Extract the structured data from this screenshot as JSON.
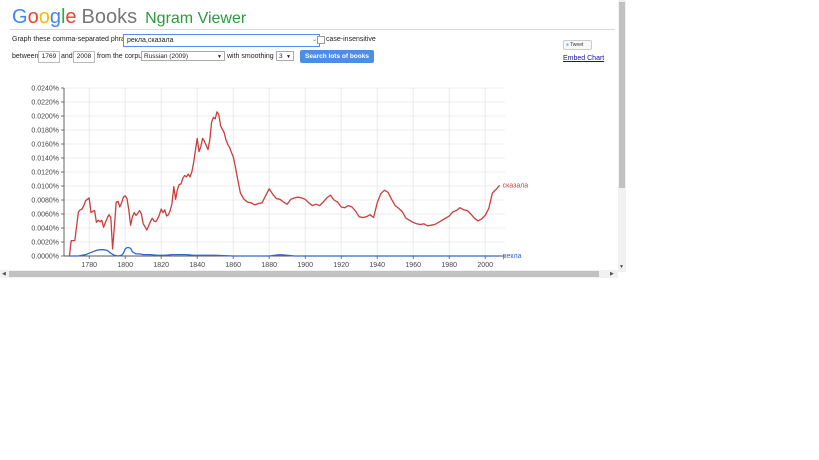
{
  "header": {
    "logo_letters": [
      "G",
      "o",
      "o",
      "g",
      "l",
      "e"
    ],
    "books": "Books",
    "title": "Ngram Viewer"
  },
  "form": {
    "phrases_label": "Graph these comma-separated phrases:",
    "phrases_value": "рекла,сказала",
    "case_label": "case-insensitive",
    "case_checked": false,
    "between_label": "between",
    "start_year": "1769",
    "and_label": "and",
    "end_year": "2008",
    "corpus_label": "from the corpus",
    "corpus_value": "Russian (2009)",
    "smoothing_label": "with smoothing of",
    "smoothing_value": "3",
    "search_button": "Search lots of books"
  },
  "side": {
    "tweet_label": "Tweet",
    "embed_label": "Embed Chart"
  },
  "chart_data": {
    "type": "line",
    "title": "",
    "xlabel": "",
    "ylabel": "",
    "xlim": [
      1766,
      2011
    ],
    "ylim": [
      0,
      0.024
    ],
    "grid": true,
    "x_ticks": [
      1780,
      1800,
      1820,
      1840,
      1860,
      1880,
      1900,
      1920,
      1940,
      1960,
      1980,
      2000
    ],
    "y_ticks": [
      "0.0000%",
      "0.0020%",
      "0.0040%",
      "0.0060%",
      "0.0080%",
      "0.0100%",
      "0.0120%",
      "0.0140%",
      "0.0160%",
      "0.0180%",
      "0.0200%",
      "0.0220%",
      "0.0240%"
    ],
    "series": [
      {
        "name": "сказала",
        "color": "#cc3d3d",
        "x": [
          1769,
          1770,
          1772,
          1774,
          1775,
          1776,
          1777,
          1778,
          1779,
          1780,
          1781,
          1782,
          1783,
          1784,
          1785,
          1786,
          1787,
          1788,
          1789,
          1790,
          1791,
          1792,
          1793,
          1794,
          1795,
          1796,
          1797,
          1798,
          1799,
          1800,
          1801,
          1802,
          1803,
          1804,
          1805,
          1806,
          1807,
          1808,
          1809,
          1810,
          1811,
          1812,
          1813,
          1814,
          1815,
          1816,
          1817,
          1818,
          1819,
          1820,
          1821,
          1822,
          1823,
          1824,
          1825,
          1826,
          1827,
          1828,
          1829,
          1830,
          1831,
          1832,
          1833,
          1834,
          1835,
          1836,
          1837,
          1838,
          1839,
          1840,
          1841,
          1842,
          1843,
          1844,
          1845,
          1846,
          1847,
          1848,
          1849,
          1850,
          1851,
          1852,
          1853,
          1854,
          1855,
          1856,
          1857,
          1858,
          1859,
          1860,
          1861,
          1862,
          1863,
          1864,
          1866,
          1868,
          1870,
          1872,
          1874,
          1876,
          1878,
          1880,
          1882,
          1884,
          1886,
          1888,
          1890,
          1892,
          1894,
          1896,
          1898,
          1900,
          1902,
          1904,
          1906,
          1908,
          1910,
          1912,
          1914,
          1916,
          1918,
          1920,
          1922,
          1924,
          1926,
          1928,
          1930,
          1932,
          1934,
          1936,
          1938,
          1940,
          1942,
          1944,
          1946,
          1948,
          1950,
          1952,
          1954,
          1956,
          1958,
          1960,
          1962,
          1964,
          1966,
          1968,
          1970,
          1972,
          1974,
          1976,
          1978,
          1980,
          1982,
          1984,
          1986,
          1988,
          1990,
          1992,
          1994,
          1996,
          1998,
          2000,
          2002,
          2004,
          2006,
          2008
        ],
        "values": [
          0.0,
          0.0022,
          0.0022,
          0.0063,
          0.0066,
          0.0067,
          0.0072,
          0.0079,
          0.0081,
          0.0083,
          0.0062,
          0.0064,
          0.0065,
          0.0048,
          0.0051,
          0.0049,
          0.0051,
          0.0041,
          0.0048,
          0.0054,
          0.0059,
          0.0055,
          0.001,
          0.0042,
          0.0077,
          0.0078,
          0.007,
          0.0076,
          0.0084,
          0.0086,
          0.0082,
          0.0066,
          0.0044,
          0.0056,
          0.0062,
          0.0058,
          0.0061,
          0.0065,
          0.006,
          0.0046,
          0.0042,
          0.0037,
          0.0043,
          0.0049,
          0.0054,
          0.005,
          0.0049,
          0.0053,
          0.0059,
          0.0067,
          0.0062,
          0.0066,
          0.0057,
          0.0059,
          0.0065,
          0.0075,
          0.0099,
          0.0081,
          0.0095,
          0.0102,
          0.0103,
          0.0111,
          0.0115,
          0.0113,
          0.0117,
          0.0113,
          0.012,
          0.0133,
          0.0151,
          0.0168,
          0.0149,
          0.0156,
          0.0168,
          0.0164,
          0.0158,
          0.0152,
          0.0166,
          0.0191,
          0.0198,
          0.0196,
          0.0206,
          0.0202,
          0.0186,
          0.0181,
          0.0176,
          0.0166,
          0.0159,
          0.0155,
          0.0148,
          0.0142,
          0.013,
          0.0116,
          0.0103,
          0.009,
          0.0081,
          0.0077,
          0.0076,
          0.0073,
          0.0075,
          0.0076,
          0.0086,
          0.0096,
          0.0088,
          0.0082,
          0.0081,
          0.0077,
          0.0074,
          0.0081,
          0.0083,
          0.0084,
          0.0083,
          0.0081,
          0.0076,
          0.0072,
          0.0074,
          0.0072,
          0.0077,
          0.0083,
          0.0087,
          0.008,
          0.0077,
          0.007,
          0.0069,
          0.0072,
          0.007,
          0.0064,
          0.0056,
          0.0055,
          0.0056,
          0.0059,
          0.0055,
          0.0076,
          0.0089,
          0.0094,
          0.0091,
          0.0081,
          0.0072,
          0.0068,
          0.0063,
          0.0054,
          0.0051,
          0.0048,
          0.0046,
          0.0045,
          0.0046,
          0.0043,
          0.0044,
          0.0045,
          0.0048,
          0.0051,
          0.0054,
          0.0057,
          0.0063,
          0.0065,
          0.0069,
          0.0066,
          0.0065,
          0.006,
          0.0054,
          0.005,
          0.0053,
          0.0058,
          0.0068,
          0.009,
          0.0095,
          0.0101
        ]
      },
      {
        "name": "рекла",
        "color": "#3366cc",
        "x": [
          1769,
          1774,
          1776,
          1778,
          1780,
          1782,
          1784,
          1786,
          1788,
          1790,
          1792,
          1794,
          1796,
          1798,
          1799,
          1800,
          1801,
          1802,
          1803,
          1804,
          1806,
          1808,
          1810,
          1814,
          1818,
          1822,
          1826,
          1830,
          1834,
          1838,
          1842,
          1846,
          1850,
          1860,
          1870,
          1880,
          1886,
          1890,
          1894,
          1900,
          1920,
          1940,
          1960,
          1980,
          2000,
          2008
        ],
        "values": [
          0.0,
          0.0,
          0.0001,
          0.0002,
          0.0004,
          0.0006,
          0.0008,
          0.0009,
          0.0009,
          0.0008,
          0.0004,
          0.0001,
          0.0,
          0.0001,
          0.0004,
          0.001,
          0.0012,
          0.0012,
          0.0011,
          0.0006,
          0.0003,
          0.0003,
          0.0002,
          0.0002,
          0.0001,
          0.0001,
          0.0002,
          0.0002,
          0.0002,
          0.0001,
          0.0001,
          0.0001,
          0.0001,
          0.0,
          0.0,
          0.0,
          0.0002,
          0.0001,
          0.0,
          0.0,
          0.0,
          0.0,
          0.0,
          0.0,
          0.0,
          0.0
        ]
      }
    ]
  }
}
